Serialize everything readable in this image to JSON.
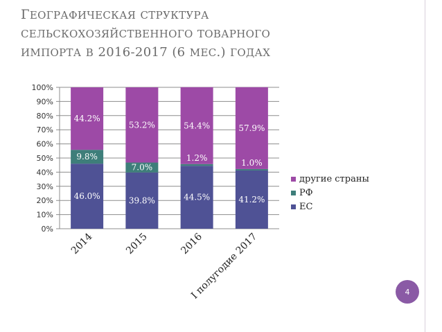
{
  "slide": {
    "title_lines": [
      "Географическая структура",
      "сельскохозяйственного товарного",
      "импорта в 2016-2017 (6 мес.) годах"
    ],
    "page_number": "4",
    "accent_color": "#8a5aa5"
  },
  "chart_data": {
    "type": "bar",
    "stacked": true,
    "percent": true,
    "categories": [
      "2014",
      "2015",
      "2016",
      "I полугодие 2017"
    ],
    "series": [
      {
        "name": "ЕС",
        "color": "#4f5295",
        "values": [
          46.0,
          39.8,
          44.5,
          41.2
        ],
        "labels": [
          "46.0%",
          "39.8%",
          "44.5%",
          "41.2%"
        ]
      },
      {
        "name": "РФ",
        "color": "#3e7e7a",
        "values": [
          9.8,
          7.0,
          1.2,
          1.0
        ],
        "labels": [
          "9.8%",
          "7.0%",
          "1.2%",
          "1.0%"
        ]
      },
      {
        "name": "другие страны",
        "color": "#9d4aa6",
        "values": [
          44.2,
          53.2,
          54.4,
          57.9
        ],
        "labels": [
          "44.2%",
          "53.2%",
          "54.4%",
          "57.9%"
        ]
      }
    ],
    "y_ticks": [
      "0%",
      "10%",
      "20%",
      "30%",
      "40%",
      "50%",
      "60%",
      "70%",
      "80%",
      "90%",
      "100%"
    ],
    "ylim": [
      0,
      100
    ],
    "grid": true,
    "legend_position": "right",
    "legend_order": [
      2,
      1,
      0
    ]
  }
}
